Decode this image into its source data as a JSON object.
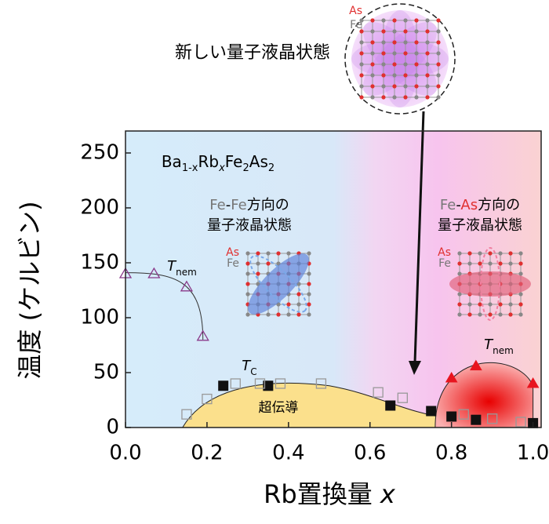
{
  "chart_data": {
    "type": "scatter",
    "title": "新しい量子液晶状態",
    "formula": [
      "Ba",
      "1-x",
      "Rb",
      "x",
      "Fe",
      "2",
      "As",
      "2"
    ],
    "xlabel": [
      "Rb置換量 ",
      "x"
    ],
    "ylabel": "温度 (ケルビン)",
    "xlim": [
      0,
      1.02
    ],
    "ylim": [
      0,
      270
    ],
    "xticks": [
      {
        "value": 0,
        "label": "0.0"
      },
      0.2,
      0.4,
      0.6,
      {
        "value": 0.8,
        "label": "0.8"
      },
      {
        "value": 1,
        "label": "1.0"
      }
    ],
    "yticks": [
      0,
      50,
      100,
      150,
      200,
      250
    ],
    "lattice_labels": {
      "as": "As",
      "fe": "Fe"
    },
    "left_note": {
      "line1": [
        "Fe",
        "-",
        "Fe",
        "方向の"
      ],
      "line2": "量子液晶状態"
    },
    "right_note": {
      "line1": [
        "Fe",
        "-",
        "As",
        "方向の"
      ],
      "line2": "量子液晶状態"
    },
    "sc_label": "超伝導",
    "tnem_label": [
      "T",
      "nem"
    ],
    "tc_label": [
      "T",
      "C"
    ],
    "series": [
      {
        "name": "Tnem (Fe-Fe)",
        "marker": "triangle-open",
        "color": "#8a3a8a",
        "x": [
          0,
          0.07,
          0.15,
          0.19
        ],
        "values": [
          140,
          140,
          128,
          83
        ]
      },
      {
        "name": "Tc",
        "marker": "square",
        "color": "#111111",
        "x": [
          0.24,
          0.35,
          0.65,
          0.75,
          0.8,
          0.86,
          1.0
        ],
        "values": [
          38,
          38,
          20,
          15,
          10,
          7,
          4
        ]
      },
      {
        "name": "Tc (other)",
        "marker": "square-open",
        "color": "#999999",
        "x": [
          0.15,
          0.2,
          0.27,
          0.33,
          0.38,
          0.48,
          0.62,
          0.68,
          0.83,
          0.9,
          0.97
        ],
        "values": [
          12,
          26,
          40,
          40,
          40,
          40,
          32,
          27,
          12,
          8,
          5
        ]
      },
      {
        "name": "Tnem (Fe-As)",
        "marker": "triangle",
        "color": "#e8141e",
        "x": [
          0.8,
          0.86,
          1.0
        ],
        "values": [
          45,
          56,
          40
        ]
      }
    ]
  }
}
